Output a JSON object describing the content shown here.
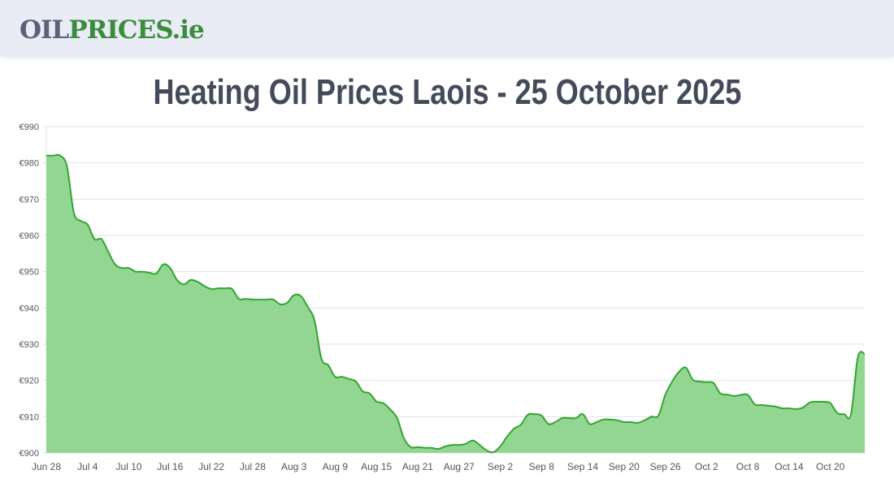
{
  "header": {
    "logo_part1": "OIL",
    "logo_part2": "PRICES.ie"
  },
  "page_title": "Heating Oil Prices Laois - 25 October 2025",
  "colors": {
    "line": "#33a532",
    "fill": "#92d692",
    "grid": "#e3e3e3"
  },
  "chart_data": {
    "type": "area",
    "title": "Heating Oil Prices Laois - 25 October 2025",
    "xlabel": "",
    "ylabel": "",
    "x_start": "Jun 28",
    "x_end": "Oct 25",
    "ylim": [
      900,
      990
    ],
    "y_ticks": [
      "€990",
      "€980",
      "€970",
      "€960",
      "€950",
      "€940",
      "€930",
      "€920",
      "€910",
      "€900"
    ],
    "y_tick_values": [
      990,
      980,
      970,
      960,
      950,
      940,
      930,
      920,
      910,
      900
    ],
    "x_ticks": [
      "Jun 28",
      "Jul 4",
      "Jul 10",
      "Jul 16",
      "Jul 22",
      "Jul 28",
      "Aug 3",
      "Aug 9",
      "Aug 15",
      "Aug 21",
      "Aug 27",
      "Sep 2",
      "Sep 8",
      "Sep 14",
      "Sep 20",
      "Sep 26",
      "Oct 2",
      "Oct 8",
      "Oct 14",
      "Oct 20"
    ],
    "x_tick_day_index": [
      0,
      6,
      12,
      18,
      24,
      30,
      36,
      42,
      48,
      54,
      60,
      66,
      72,
      78,
      84,
      90,
      96,
      102,
      108,
      114
    ],
    "grid": true,
    "values": [
      982,
      982,
      982,
      979,
      966.3,
      964,
      963,
      959,
      959,
      955.5,
      952,
      951,
      951,
      950,
      950,
      949.7,
      949.5,
      952,
      951,
      947.7,
      946.5,
      947.7,
      947.2,
      946,
      945.2,
      945.4,
      945.4,
      945.2,
      942.5,
      942.5,
      942.3,
      942.3,
      942.3,
      942.3,
      941,
      941.4,
      943.5,
      943.3,
      940.3,
      936.5,
      926,
      924.2,
      921,
      921,
      920.4,
      919.7,
      917,
      916.4,
      914.2,
      913.7,
      912,
      909.6,
      904,
      901.6,
      901.6,
      901.4,
      901.4,
      901.1,
      901.8,
      902.2,
      902.2,
      902.5,
      903.4,
      902.2,
      900.7,
      900.2,
      901.8,
      904.5,
      906.7,
      907.8,
      910.5,
      910.7,
      910.3,
      908,
      908.5,
      909.6,
      909.6,
      909.6,
      910.7,
      908,
      908.5,
      909.2,
      909.2,
      909,
      908.5,
      908.5,
      908.3,
      909,
      910,
      910.3,
      916,
      919.7,
      922.4,
      923.5,
      920.2,
      919.7,
      919.5,
      919.3,
      916.4,
      916.1,
      915.7,
      916,
      916,
      913.4,
      913.2,
      913,
      912.8,
      912.3,
      912.3,
      912.1,
      912.5,
      913.9,
      914.1,
      914.1,
      913.7,
      911,
      910.7,
      910.7,
      926.4,
      927.3
    ]
  }
}
